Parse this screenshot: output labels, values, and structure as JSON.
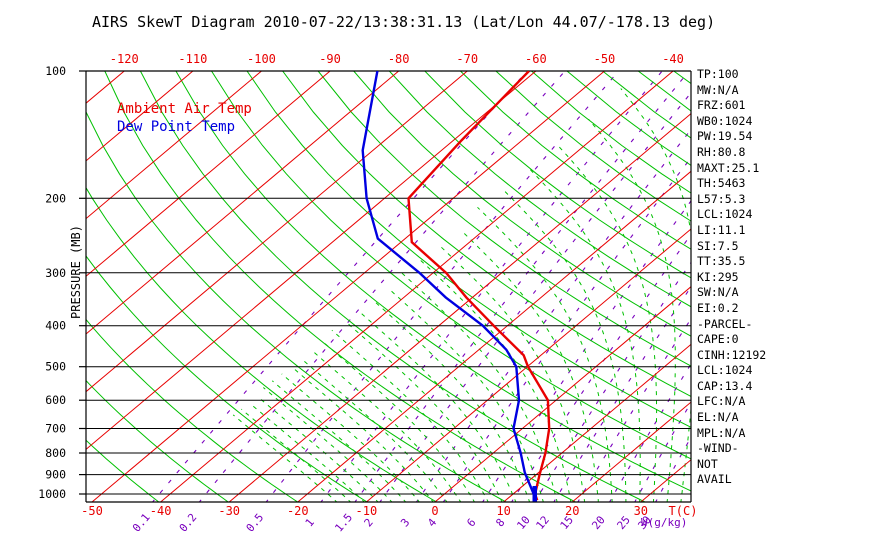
{
  "title": "AIRS SkewT Diagram 2010-07-22/13:38:31.13 (Lat/Lon 44.07/-178.13 deg)",
  "legend": {
    "temp_label": "Ambient Air Temp",
    "dew_label": "Dew Point Temp"
  },
  "colors": {
    "isotherm": "#e80000",
    "dry_adiabat": "#00c000",
    "moist_adiabat": "#00c000",
    "mixing_ratio": "#7a00be",
    "temperature_curve": "#e80000",
    "dewpoint_curve": "#0000e0",
    "grid": "#000000",
    "axis_label_temp": "#e80000",
    "axis_label_mixing": "#7a00be"
  },
  "axes": {
    "left_title": "PRESSURE (MB)",
    "pressure_ticks": [
      100,
      200,
      300,
      400,
      500,
      600,
      700,
      800,
      900,
      1000
    ],
    "top_temp_labels": [
      -120,
      -110,
      -100,
      -90,
      -80,
      -70,
      -60,
      -50,
      -40
    ],
    "bottom_temp_labels": [
      -50,
      -40,
      -30,
      -20,
      -10,
      0,
      10,
      20,
      30
    ],
    "temp_unit_label": "T(C)",
    "mixing_ratio_labels": [
      0.1,
      0.2,
      0.5,
      1,
      1.5,
      2,
      3,
      4,
      6,
      8,
      10,
      12,
      15,
      20,
      25,
      30
    ],
    "mixing_ratio_unit_label": "W(g/kg)"
  },
  "right_panel": {
    "lines": [
      "TP:100",
      "MW:N/A",
      "FRZ:601",
      "WB0:1024",
      "PW:19.54",
      "RH:80.8",
      "MAXT:25.1",
      "TH:5463",
      "L57:5.3",
      "LCL:1024",
      "LI:11.1",
      "SI:7.5",
      "TT:35.5",
      "KI:295",
      "SW:N/A",
      "EI:0.2",
      "-PARCEL-",
      "CAPE:0",
      "CINH:12192",
      "LCL:1024",
      "CAP:13.4",
      "LFC:N/A",
      "EL:N/A",
      "MPL:N/A",
      "-WIND-",
      "NOT",
      "AVAIL"
    ]
  },
  "chart_data": {
    "type": "line",
    "subtype": "skewt-log-p",
    "title": "AIRS SkewT Diagram 2010-07-22/13:38:31.13 (Lat/Lon 44.07/-178.13 deg)",
    "xlabel": "T(C)",
    "ylabel": "PRESSURE (MB)",
    "x_axis": {
      "range": [
        -160,
        40
      ],
      "tick_step": 10,
      "unit": "C"
    },
    "y_axis": {
      "scale": "log",
      "range": [
        100,
        1050
      ],
      "ticks": [
        100,
        200,
        300,
        400,
        500,
        600,
        700,
        800,
        900,
        1000
      ],
      "unit": "MB"
    },
    "grid": {
      "isotherms": {
        "min": -160,
        "max": 40,
        "step": 10
      },
      "dry_adiabats_theta_K": {
        "min": 230,
        "max": 450,
        "step": 10
      },
      "moist_adiabats_thetaw_C": {
        "min": -14,
        "max": 36,
        "step": 2,
        "clip_below_temp_C": -45
      },
      "mixing_ratio_g_kg": [
        0.1,
        0.2,
        0.5,
        1,
        1.5,
        2,
        3,
        4,
        6,
        8,
        10,
        12,
        15,
        20,
        25,
        30
      ],
      "pressure_lines": [
        200,
        300,
        400,
        500,
        600,
        700,
        800,
        900,
        1000
      ]
    },
    "series": [
      {
        "name": "Ambient Air Temp",
        "color_key": "temperature_curve",
        "points": [
          {
            "p": 100,
            "t": -61.0
          },
          {
            "p": 146,
            "t": -58.8
          },
          {
            "p": 200,
            "t": -56.5
          },
          {
            "p": 254,
            "t": -48.4
          },
          {
            "p": 300,
            "t": -38.1
          },
          {
            "p": 343,
            "t": -30.9
          },
          {
            "p": 400,
            "t": -22.0
          },
          {
            "p": 470,
            "t": -12.5
          },
          {
            "p": 500,
            "t": -9.9
          },
          {
            "p": 600,
            "t": -1.2
          },
          {
            "p": 700,
            "t": 3.9
          },
          {
            "p": 800,
            "t": 7.6
          },
          {
            "p": 900,
            "t": 10.5
          },
          {
            "p": 1000,
            "t": 13.2
          },
          {
            "p": 1035,
            "t": 14.6
          }
        ]
      },
      {
        "name": "Dew Point Temp",
        "color_key": "dewpoint_curve",
        "points": [
          {
            "p": 100,
            "t": -83.1
          },
          {
            "p": 154,
            "t": -71.5
          },
          {
            "p": 200,
            "t": -62.6
          },
          {
            "p": 249,
            "t": -54.0
          },
          {
            "p": 300,
            "t": -42.0
          },
          {
            "p": 343,
            "t": -33.9
          },
          {
            "p": 400,
            "t": -23.6
          },
          {
            "p": 456,
            "t": -16.0
          },
          {
            "p": 500,
            "t": -11.6
          },
          {
            "p": 600,
            "t": -5.4
          },
          {
            "p": 700,
            "t": -1.3
          },
          {
            "p": 800,
            "t": 4.0
          },
          {
            "p": 890,
            "t": 8.0
          },
          {
            "p": 1000,
            "t": 13.0
          },
          {
            "p": 1035,
            "t": 14.3
          }
        ]
      }
    ]
  }
}
